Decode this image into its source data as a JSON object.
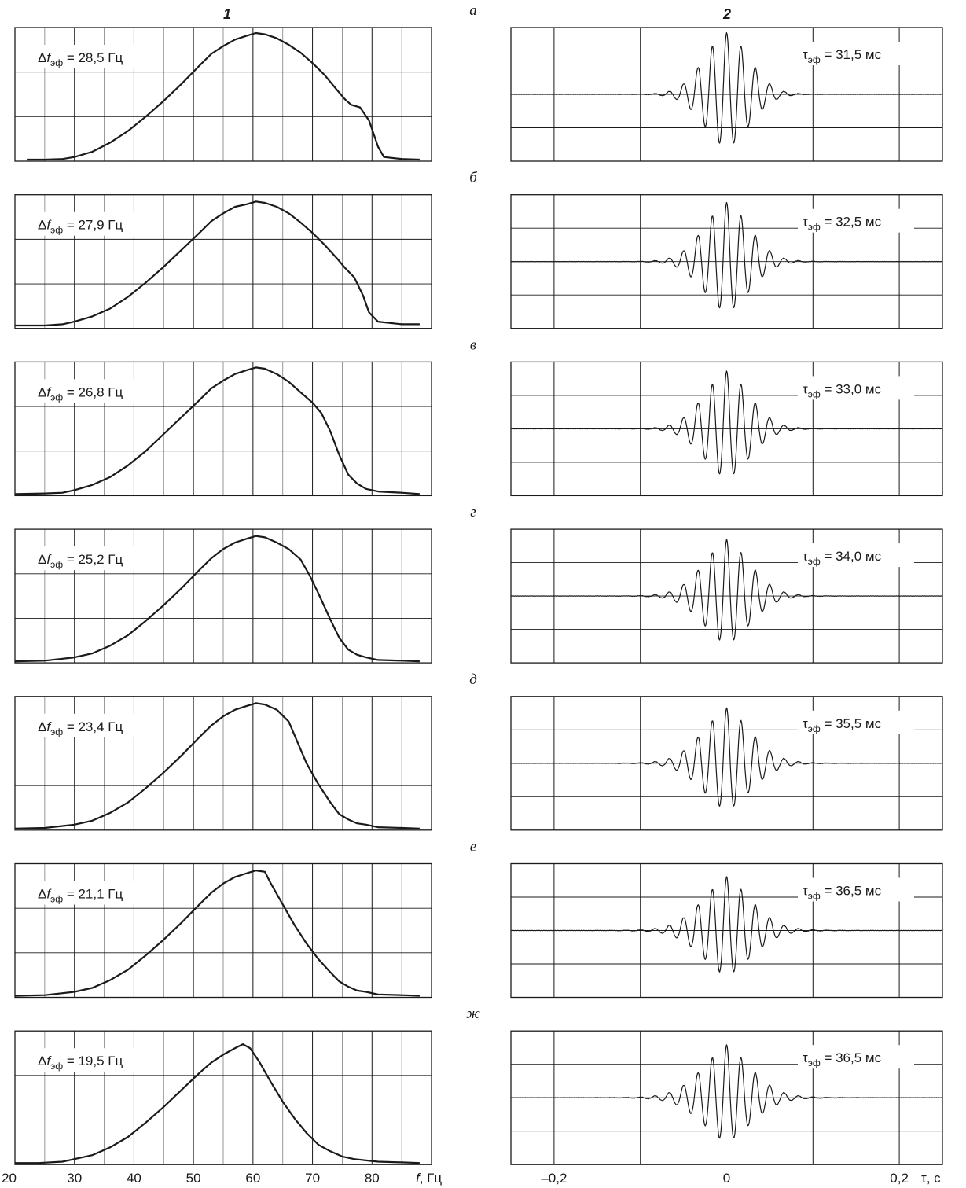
{
  "column_titles": [
    "1",
    "2"
  ],
  "left_axis": {
    "tick_labels": [
      "20",
      "30",
      "40",
      "50",
      "60",
      "70",
      "80"
    ],
    "xlabel_var": "f",
    "xlabel_unit": ", Гц"
  },
  "right_axis": {
    "tick_labels": [
      "–0,2",
      "0",
      "0,2"
    ],
    "xlabel_var": "τ",
    "xlabel_unit": ", с"
  },
  "panels": [
    {
      "letter": "а",
      "delta_f": "28,5 Гц",
      "tau": "31,5 мс"
    },
    {
      "letter": "б",
      "delta_f": "27,9 Гц",
      "tau": "32,5 мс"
    },
    {
      "letter": "в",
      "delta_f": "26,8 Гц",
      "tau": "33,0 мс"
    },
    {
      "letter": "г",
      "delta_f": "25,2 Гц",
      "tau": "34,0 мс"
    },
    {
      "letter": "д",
      "delta_f": "23,4 Гц",
      "tau": "35,5 мс"
    },
    {
      "letter": "е",
      "delta_f": "21,1 Гц",
      "tau": "36,5 мс"
    },
    {
      "letter": "ж",
      "delta_f": "19,5 Гц",
      "tau": "36,5 мс"
    }
  ],
  "chart_data": [
    {
      "type": "line",
      "name": "spectra",
      "xlim": [
        20,
        90
      ],
      "ylim": [
        0,
        1
      ],
      "grid": true,
      "series": [
        {
          "x": [
            22,
            25,
            28,
            30,
            33,
            36,
            39,
            42,
            45,
            48,
            51,
            53,
            55,
            57,
            59,
            60.5,
            62,
            64,
            66,
            68,
            70,
            72,
            74,
            75.5,
            76.5,
            78,
            79.5,
            81,
            82,
            85,
            88
          ],
          "y": [
            0,
            0,
            0.005,
            0.02,
            0.06,
            0.13,
            0.22,
            0.33,
            0.45,
            0.58,
            0.72,
            0.81,
            0.87,
            0.92,
            0.95,
            0.97,
            0.96,
            0.93,
            0.88,
            0.82,
            0.74,
            0.65,
            0.54,
            0.46,
            0.42,
            0.4,
            0.3,
            0.1,
            0.02,
            0.005,
            0
          ]
        },
        {
          "x": [
            20,
            25,
            28,
            30,
            33,
            36,
            39,
            42,
            45,
            48,
            51,
            53,
            55,
            57,
            59,
            60.5,
            62,
            64,
            66,
            68,
            70,
            72,
            74,
            75.5,
            77,
            78.5,
            79.5,
            81,
            85,
            88
          ],
          "y": [
            0.01,
            0.01,
            0.02,
            0.04,
            0.08,
            0.14,
            0.23,
            0.34,
            0.46,
            0.59,
            0.72,
            0.81,
            0.87,
            0.92,
            0.94,
            0.96,
            0.95,
            0.92,
            0.87,
            0.8,
            0.72,
            0.63,
            0.53,
            0.45,
            0.38,
            0.24,
            0.11,
            0.04,
            0.02,
            0.02
          ]
        },
        {
          "x": [
            20,
            25,
            28,
            30,
            33,
            36,
            39,
            42,
            45,
            48,
            51,
            53,
            55,
            57,
            59,
            60.5,
            62,
            64,
            66,
            68,
            70,
            71.5,
            73,
            74.5,
            76,
            77.5,
            79,
            81,
            85,
            88
          ],
          "y": [
            0,
            0.005,
            0.01,
            0.03,
            0.07,
            0.13,
            0.22,
            0.33,
            0.46,
            0.59,
            0.72,
            0.81,
            0.87,
            0.92,
            0.95,
            0.97,
            0.96,
            0.92,
            0.86,
            0.78,
            0.7,
            0.62,
            0.48,
            0.3,
            0.15,
            0.08,
            0.04,
            0.02,
            0.01,
            0
          ]
        },
        {
          "x": [
            20,
            25,
            28,
            30,
            33,
            36,
            39,
            42,
            45,
            48,
            51,
            53,
            55,
            57,
            59,
            60.5,
            62,
            64,
            66,
            68,
            69.5,
            71,
            73,
            74.5,
            76,
            77.5,
            79,
            81,
            85,
            88
          ],
          "y": [
            0,
            0.005,
            0.02,
            0.03,
            0.06,
            0.12,
            0.2,
            0.31,
            0.43,
            0.56,
            0.7,
            0.79,
            0.86,
            0.91,
            0.94,
            0.96,
            0.95,
            0.91,
            0.86,
            0.78,
            0.66,
            0.52,
            0.32,
            0.18,
            0.09,
            0.05,
            0.03,
            0.01,
            0.005,
            0
          ]
        },
        {
          "x": [
            20,
            25,
            28,
            30,
            33,
            36,
            39,
            42,
            45,
            48,
            51,
            53,
            55,
            57,
            59,
            60.5,
            62,
            64,
            66,
            67.5,
            69,
            71,
            73,
            74.5,
            76,
            77.5,
            79,
            81,
            85,
            88
          ],
          "y": [
            0,
            0.005,
            0.02,
            0.03,
            0.06,
            0.12,
            0.2,
            0.31,
            0.43,
            0.56,
            0.7,
            0.79,
            0.86,
            0.91,
            0.94,
            0.96,
            0.95,
            0.91,
            0.82,
            0.66,
            0.5,
            0.34,
            0.2,
            0.11,
            0.07,
            0.04,
            0.03,
            0.01,
            0.005,
            0
          ]
        },
        {
          "x": [
            20,
            25,
            28,
            30,
            33,
            36,
            39,
            42,
            45,
            48,
            51,
            53,
            55,
            57,
            59,
            60.5,
            62,
            63,
            65,
            67,
            69,
            71,
            73,
            74.5,
            76,
            77.5,
            79,
            81,
            85,
            88
          ],
          "y": [
            0,
            0.005,
            0.02,
            0.03,
            0.06,
            0.12,
            0.2,
            0.31,
            0.43,
            0.56,
            0.7,
            0.79,
            0.86,
            0.91,
            0.94,
            0.96,
            0.95,
            0.86,
            0.7,
            0.54,
            0.4,
            0.28,
            0.18,
            0.11,
            0.07,
            0.04,
            0.03,
            0.01,
            0.005,
            0
          ]
        },
        {
          "x": [
            20,
            24,
            28,
            30,
            33,
            36,
            39,
            42,
            45,
            48,
            51,
            53,
            55,
            57,
            58.3,
            59.5,
            61,
            63,
            65,
            67,
            69,
            71,
            73,
            75,
            77,
            79,
            81,
            85,
            88
          ],
          "y": [
            0,
            0,
            0.01,
            0.03,
            0.06,
            0.12,
            0.2,
            0.31,
            0.43,
            0.56,
            0.69,
            0.77,
            0.83,
            0.88,
            0.91,
            0.88,
            0.78,
            0.62,
            0.47,
            0.34,
            0.23,
            0.14,
            0.09,
            0.05,
            0.03,
            0.02,
            0.01,
            0.005,
            0
          ]
        }
      ]
    },
    {
      "type": "line",
      "name": "autocorrelation",
      "xlim": [
        -0.25,
        0.25
      ],
      "ylim": [
        -0.8,
        1.0
      ],
      "grid": true,
      "series": [
        {
          "f0": 60,
          "tau_ms": 31.5,
          "tail": 0.22
        },
        {
          "f0": 60,
          "tau_ms": 32.5,
          "tail": 0.3
        },
        {
          "f0": 60,
          "tau_ms": 33.0,
          "tail": 0.34
        },
        {
          "f0": 60,
          "tau_ms": 34.0,
          "tail": 0.38
        },
        {
          "f0": 60,
          "tau_ms": 35.5,
          "tail": 0.42
        },
        {
          "f0": 60,
          "tau_ms": 36.5,
          "tail": 0.47
        },
        {
          "f0": 60,
          "tau_ms": 36.5,
          "tail": 0.5
        }
      ]
    }
  ]
}
